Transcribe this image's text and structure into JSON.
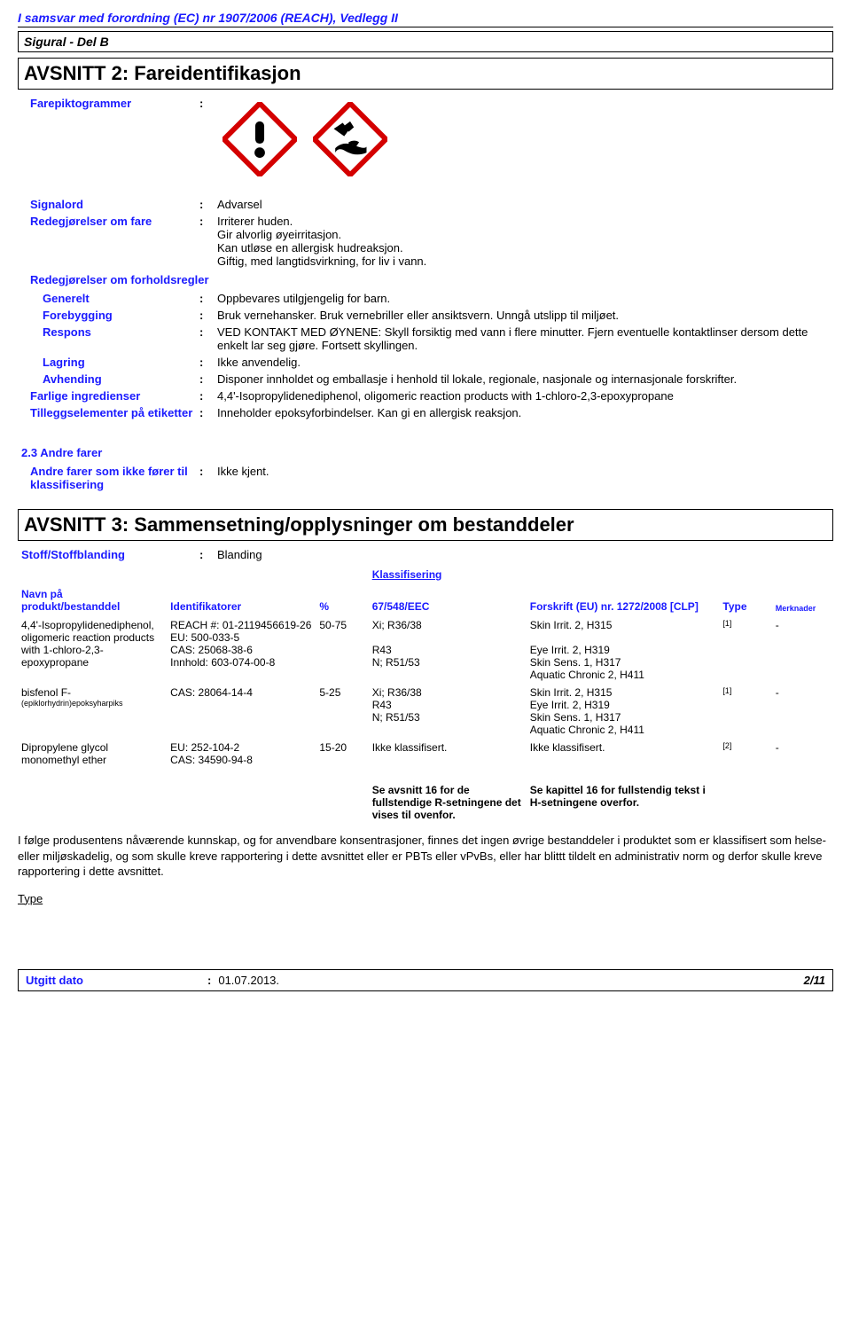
{
  "regulation_header": "I samsvar med forordning (EC) nr 1907/2006 (REACH), Vedlegg II",
  "product_name": "Sigural - Del B",
  "section2": {
    "title": "AVSNITT 2: Fareidentifikasjon",
    "piktogram_label": "Farepiktogrammer",
    "rows": {
      "signalord": {
        "label": "Signalord",
        "value": "Advarsel"
      },
      "fare": {
        "label": "Redegjørelser om fare",
        "value": "Irriterer huden.\nGir alvorlig øyeirritasjon.\nKan utløse en allergisk hudreaksjon.\nGiftig, med langtidsvirkning, for liv i vann."
      },
      "forholdsregler_hdr": "Redegjørelser om forholdsregler",
      "generelt": {
        "label": "Generelt",
        "value": "Oppbevares utilgjengelig for barn."
      },
      "forebygging": {
        "label": "Forebygging",
        "value": "Bruk vernehansker. Bruk vernebriller eller ansiktsvern. Unngå utslipp til miljøet."
      },
      "respons": {
        "label": "Respons",
        "value": "VED KONTAKT MED ØYNENE: Skyll forsiktig med vann i flere minutter. Fjern eventuelle kontaktlinser dersom dette enkelt lar seg gjøre. Fortsett skyllingen."
      },
      "lagring": {
        "label": "Lagring",
        "value": "Ikke anvendelig."
      },
      "avhending": {
        "label": "Avhending",
        "value": "Disponer innholdet og emballasje i henhold til lokale, regionale, nasjonale og internasjonale forskrifter."
      },
      "farlige": {
        "label": "Farlige ingredienser",
        "value": "4,4'-Isopropylidenediphenol, oligomeric reaction products with 1-chloro-2,3-epoxypropane"
      },
      "tillegg": {
        "label": "Tilleggselementer på etiketter",
        "value": "Inneholder epoksyforbindelser. Kan gi en allergisk reaksjon."
      }
    },
    "andre_farer": {
      "heading": "2.3 Andre farer",
      "row": {
        "label": "Andre farer som ikke fører til klassifisering",
        "value": "Ikke kjent."
      }
    }
  },
  "section3": {
    "title": "AVSNITT 3: Sammensetning/opplysninger om bestanddeler",
    "row1": {
      "label": "Stoff/Stoffblanding",
      "value": "Blanding"
    },
    "klassifisering_title": "Klassifisering",
    "columns": {
      "navn": "Navn på produkt/bestanddel",
      "ident": "Identifikatorer",
      "pct": "%",
      "eec": "67/548/EEC",
      "eu": "Forskrift (EU) nr. 1272/2008 [CLP]",
      "type": "Type",
      "merk": "Merknader"
    },
    "rows": [
      {
        "name": "4,4'-Isopropylidenediphenol, oligomeric reaction products with 1-chloro-2,3-epoxypropane",
        "ident": "REACH #: 01-2119456619-26\nEU: 500-033-5\nCAS: 25068-38-6\nInnhold: 603-074-00-8",
        "pct": "50-75",
        "eec": "Xi; R36/38\n\nR43\nN; R51/53",
        "eu": "Skin Irrit. 2, H315\n\nEye Irrit. 2, H319\nSkin Sens. 1, H317\nAquatic Chronic 2, H411",
        "type": "[1]",
        "merk": "-"
      },
      {
        "name": "bisfenol F-",
        "name_sub": "(epiklorhydrin)epoksyharpiks",
        "ident": "CAS: 28064-14-4",
        "pct": "5-25",
        "eec": "Xi; R36/38\nR43\nN; R51/53",
        "eu": "Skin Irrit. 2, H315\nEye Irrit. 2, H319\nSkin Sens. 1, H317\nAquatic Chronic 2, H411",
        "type": "[1]",
        "merk": "-"
      },
      {
        "name": "Dipropylene glycol monomethyl ether",
        "ident": "EU: 252-104-2\nCAS: 34590-94-8",
        "pct": "15-20",
        "eec": "Ikke klassifisert.",
        "eu": "Ikke klassifisert.",
        "type": "[2]",
        "merk": "-"
      }
    ],
    "footer_note_eec": "Se avsnitt 16 for de fullstendige R-setningene det vises til ovenfor.",
    "footer_note_eu": "Se kapittel 16 for fullstendig tekst i H-setningene overfor.",
    "paragraph": "I følge produsentens nåværende kunnskap, og for anvendbare konsentrasjoner, finnes det ingen øvrige bestanddeler i produktet som er klassifisert som helse- eller miljøskadelig, og som skulle kreve rapportering i dette avsnittet eller er PBTs eller vPvBs, eller har blittt tildelt en administrativ norm og derfor skulle kreve rapportering i dette avsnittet.",
    "type_label": "Type"
  },
  "footer": {
    "label": "Utgitt dato",
    "value": "01.07.2013.",
    "page": "2/11"
  },
  "pictogram_colors": {
    "border": "#d40000",
    "fill": "#ffffff",
    "symbol": "#000000"
  }
}
